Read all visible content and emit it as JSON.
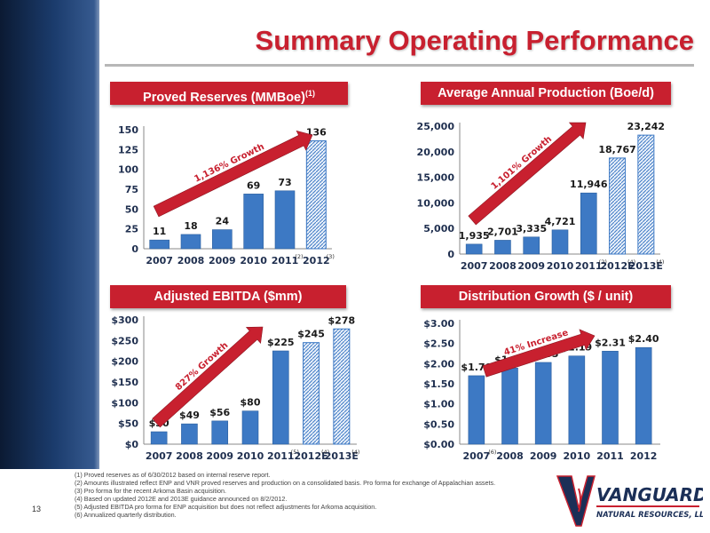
{
  "page": {
    "title": "Summary Operating Performance",
    "page_number": "13"
  },
  "colors": {
    "accent": "#c8202f",
    "bar": "#3d79c4",
    "axis_text": "#1f2f4f"
  },
  "banners": [
    {
      "label": "Proved Reserves (MMBoe)",
      "sup": "(1)"
    },
    {
      "label": "Average Annual Production (Boe/d)",
      "sup": ""
    },
    {
      "label": "Adjusted EBITDA ($mm)",
      "sup": ""
    },
    {
      "label": "Distribution Growth ($ / unit)",
      "sup": ""
    }
  ],
  "chart_data": [
    {
      "type": "bar",
      "categories": [
        "2007",
        "2008",
        "2009",
        "2010",
        "2011",
        "2012"
      ],
      "category_sups": [
        "",
        "",
        "",
        "",
        "(2)",
        "(3)"
      ],
      "values": [
        11,
        18,
        24,
        69,
        73,
        136
      ],
      "value_labels": [
        "11",
        "18",
        "24",
        "69",
        "73",
        "136"
      ],
      "hatched": [
        false,
        false,
        false,
        false,
        false,
        true
      ],
      "ylim": [
        0,
        150
      ],
      "yticks": [
        "0",
        "25",
        "50",
        "75",
        "100",
        "125",
        "150"
      ],
      "annotation": "1,136% Growth"
    },
    {
      "type": "bar",
      "categories": [
        "2007",
        "2008",
        "2009",
        "2010",
        "2011",
        "2012E",
        "2013E"
      ],
      "category_sups": [
        "",
        "",
        "",
        "",
        "(2)",
        "(4)",
        "(4)"
      ],
      "values": [
        1935,
        2701,
        3335,
        4721,
        11946,
        18767,
        23242
      ],
      "value_labels": [
        "1,935",
        "2,701",
        "3,335",
        "4,721",
        "11,946",
        "18,767",
        "23,242"
      ],
      "hatched": [
        false,
        false,
        false,
        false,
        false,
        true,
        true
      ],
      "ylim": [
        0,
        25000
      ],
      "yticks": [
        "0",
        "5,000",
        "10,000",
        "15,000",
        "20,000",
        "25,000"
      ],
      "annotation": "1,101% Growth"
    },
    {
      "type": "bar",
      "categories": [
        "2007",
        "2008",
        "2009",
        "2010",
        "2011",
        "2012E",
        "2013E"
      ],
      "category_sups": [
        "",
        "",
        "",
        "",
        "(5)",
        "(4)",
        "(4)"
      ],
      "values": [
        30,
        49,
        56,
        80,
        225,
        245,
        278
      ],
      "value_labels": [
        "$30",
        "$49",
        "$56",
        "$80",
        "$225",
        "$245",
        "$278"
      ],
      "hatched": [
        false,
        false,
        false,
        false,
        false,
        true,
        true
      ],
      "ylim": [
        0,
        300
      ],
      "yticks": [
        "$0",
        "$50",
        "$100",
        "$150",
        "$200",
        "$250",
        "$300"
      ],
      "annotation": "827% Growth"
    },
    {
      "type": "bar",
      "categories": [
        "2007",
        "2008",
        "2009",
        "2010",
        "2011",
        "2012"
      ],
      "category_sups": [
        "(6)",
        "",
        "",
        "",
        "",
        ""
      ],
      "values": [
        1.7,
        1.89,
        2.03,
        2.19,
        2.31,
        2.4
      ],
      "value_labels": [
        "$1.70",
        "$1.89",
        "$2.03",
        "$2.19",
        "$2.31",
        "$2.40"
      ],
      "hatched": [
        false,
        false,
        false,
        false,
        false,
        false
      ],
      "ylim": [
        0,
        3.0
      ],
      "yticks": [
        "$0.00",
        "$0.50",
        "$1.00",
        "$1.50",
        "$2.00",
        "$2.50",
        "$3.00"
      ],
      "annotation": "41% Increase"
    }
  ],
  "footnotes": [
    "(1)  Proved reserves as of 6/30/2012 based on internal reserve report.",
    "(2)  Amounts illustrated reflect ENP and VNR proved reserves and production on a consolidated basis. Pro forma for exchange of Appalachian assets.",
    "(3)  Pro forma for the recent Arkoma Basin acquisition.",
    "(4)  Based on updated 2012E and 2013E guidance announced on 8/2/2012.",
    "(5)  Adjusted EBITDA pro forma for ENP acquisition but does not reflect adjustments for Arkoma acquisition.",
    "(6)  Annualized quarterly distribution."
  ],
  "logo": {
    "name": "VANGUARD",
    "sub": "NATURAL RESOURCES, LLC"
  }
}
